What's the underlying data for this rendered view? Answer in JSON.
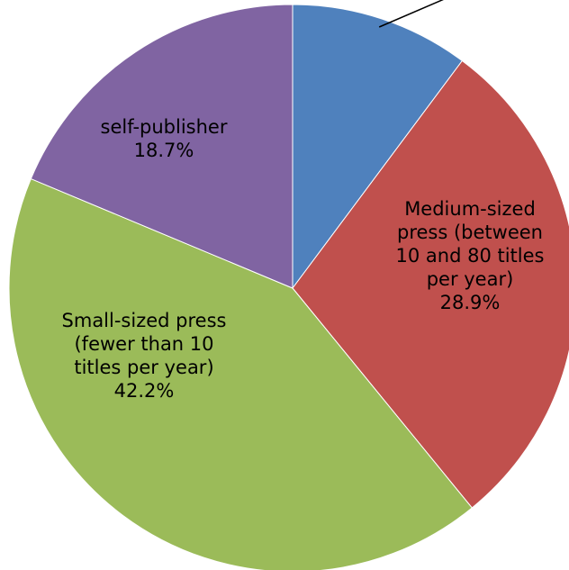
{
  "chart_data": {
    "type": "pie",
    "start_angle": "12 o'clock",
    "direction": "clockwise",
    "slices": [
      {
        "label": "",
        "value": 10.2,
        "color": "#4F81BD"
      },
      {
        "label": "Medium-sized press (between 10 and 80 titles per year)",
        "label_lines": [
          "Medium-sized",
          "press (between",
          "10 and 80 titles",
          "per year)"
        ],
        "value": 28.9,
        "value_label": "28.9%",
        "color": "#C0504D"
      },
      {
        "label": "Small-sized press (fewer than 10 titles per year)",
        "label_lines": [
          "Small-sized press",
          "(fewer than 10",
          "titles per year)"
        ],
        "value": 42.2,
        "value_label": "42.2%",
        "color": "#9BBB59"
      },
      {
        "label": "self-publisher",
        "label_lines": [
          "self-publisher"
        ],
        "value": 18.7,
        "value_label": "18.7%",
        "color": "#8064A2"
      }
    ],
    "leader_line_on_slice": 0
  }
}
